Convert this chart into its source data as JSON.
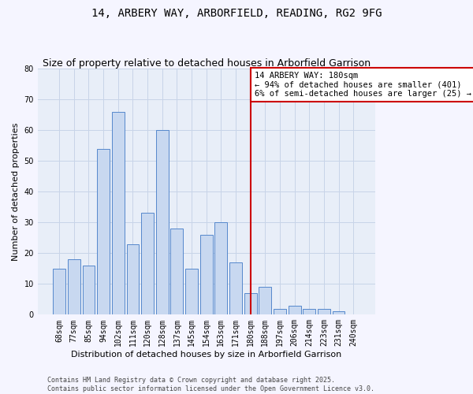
{
  "title1": "14, ARBERY WAY, ARBORFIELD, READING, RG2 9FG",
  "title2": "Size of property relative to detached houses in Arborfield Garrison",
  "xlabel": "Distribution of detached houses by size in Arborfield Garrison",
  "ylabel": "Number of detached properties",
  "categories": [
    "68sqm",
    "77sqm",
    "85sqm",
    "94sqm",
    "102sqm",
    "111sqm",
    "120sqm",
    "128sqm",
    "137sqm",
    "145sqm",
    "154sqm",
    "163sqm",
    "171sqm",
    "180sqm",
    "188sqm",
    "197sqm",
    "206sqm",
    "214sqm",
    "223sqm",
    "231sqm",
    "240sqm"
  ],
  "values": [
    15,
    18,
    16,
    54,
    66,
    23,
    33,
    60,
    28,
    15,
    26,
    30,
    17,
    7,
    9,
    2,
    3,
    2,
    2,
    1,
    0
  ],
  "bar_color": "#c8d8f0",
  "bar_edge_color": "#5588cc",
  "vline_x": 13,
  "vline_color": "#cc0000",
  "annotation_text": "14 ARBERY WAY: 180sqm\n← 94% of detached houses are smaller (401)\n6% of semi-detached houses are larger (25) →",
  "annotation_box_color": "#cc0000",
  "ylim": [
    0,
    80
  ],
  "yticks": [
    0,
    10,
    20,
    30,
    40,
    50,
    60,
    70,
    80
  ],
  "grid_color": "#c8d4e8",
  "background_color": "#e8eef8",
  "fig_background": "#f5f5ff",
  "footer1": "Contains HM Land Registry data © Crown copyright and database right 2025.",
  "footer2": "Contains public sector information licensed under the Open Government Licence v3.0.",
  "title_fontsize": 10,
  "subtitle_fontsize": 9,
  "axis_label_fontsize": 8,
  "tick_fontsize": 7,
  "annotation_fontsize": 7.5,
  "footer_fontsize": 6
}
